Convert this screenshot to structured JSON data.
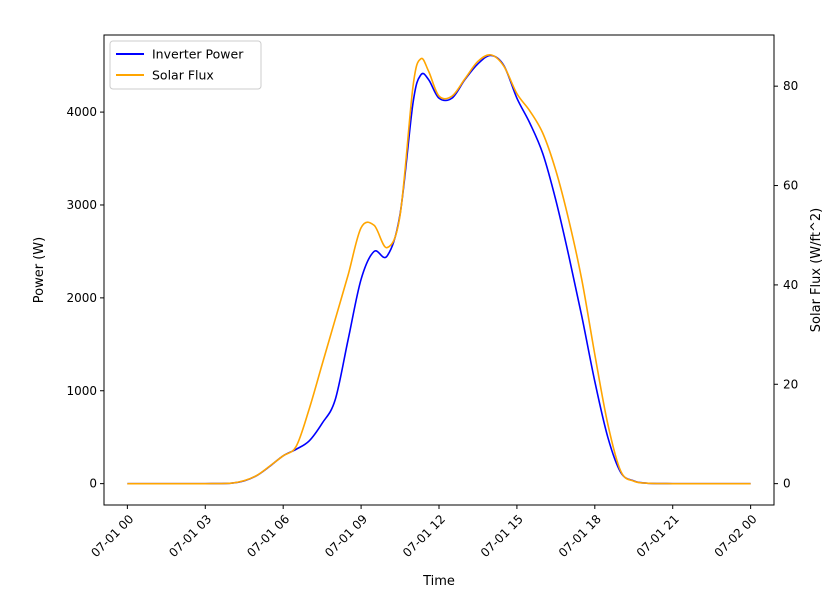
{
  "chart_data": {
    "type": "line",
    "title": "",
    "xlabel": "Time",
    "ylabel_left": "Power (W)",
    "ylabel_right": "Solar Flux (W/ft^2)",
    "x_unit": "hours since 07-01 00:00",
    "xlim": [
      -0.9,
      24.9
    ],
    "ylim_left": [
      -230,
      4830
    ],
    "ylim_right": [
      -4.3,
      90.3
    ],
    "x_ticks": [
      {
        "value": 0,
        "label": "07-01 00"
      },
      {
        "value": 3,
        "label": "07-01 03"
      },
      {
        "value": 6,
        "label": "07-01 06"
      },
      {
        "value": 9,
        "label": "07-01 09"
      },
      {
        "value": 12,
        "label": "07-01 12"
      },
      {
        "value": 15,
        "label": "07-01 15"
      },
      {
        "value": 18,
        "label": "07-01 18"
      },
      {
        "value": 21,
        "label": "07-01 21"
      },
      {
        "value": 24,
        "label": "07-02 00"
      }
    ],
    "y_ticks_left": [
      {
        "value": 0,
        "label": "0"
      },
      {
        "value": 1000,
        "label": "1000"
      },
      {
        "value": 2000,
        "label": "2000"
      },
      {
        "value": 3000,
        "label": "3000"
      },
      {
        "value": 4000,
        "label": "4000"
      }
    ],
    "y_ticks_right": [
      {
        "value": 0,
        "label": "0"
      },
      {
        "value": 20,
        "label": "20"
      },
      {
        "value": 40,
        "label": "40"
      },
      {
        "value": 60,
        "label": "60"
      },
      {
        "value": 80,
        "label": "80"
      }
    ],
    "legend_position": "top-left",
    "grid": false,
    "series": [
      {
        "name": "Inverter Power",
        "color": "#0000ff",
        "axis": "left",
        "x": [
          0,
          1,
          2,
          3,
          4,
          4.5,
          5,
          5.5,
          6,
          6.5,
          7,
          7.5,
          8,
          8.5,
          9,
          9.5,
          10,
          10.5,
          11,
          11.3,
          11.6,
          12,
          12.5,
          13,
          13.5,
          14,
          14.5,
          15,
          15.5,
          16,
          16.5,
          17,
          17.5,
          18,
          18.5,
          19,
          19.5,
          20,
          21,
          22,
          23,
          24
        ],
        "y": [
          0,
          0,
          0,
          0,
          5,
          30,
          90,
          190,
          300,
          370,
          460,
          650,
          900,
          1550,
          2200,
          2500,
          2450,
          2900,
          4100,
          4400,
          4350,
          4150,
          4150,
          4350,
          4520,
          4610,
          4500,
          4150,
          3880,
          3550,
          3050,
          2450,
          1800,
          1100,
          500,
          120,
          30,
          5,
          0,
          0,
          0,
          0
        ]
      },
      {
        "name": "Solar Flux",
        "color": "#ffa500",
        "axis": "right",
        "x": [
          0,
          1,
          2,
          3,
          4,
          4.5,
          5,
          5.5,
          6,
          6.5,
          7,
          7.5,
          8,
          8.5,
          9,
          9.5,
          10,
          10.5,
          11,
          11.3,
          11.6,
          12,
          12.5,
          13,
          13.5,
          14,
          14.5,
          15,
          15.5,
          16,
          16.5,
          17,
          17.5,
          18,
          18.5,
          19,
          19.5,
          20,
          21,
          22,
          23,
          24
        ],
        "y": [
          0,
          0,
          0,
          0,
          0.1,
          0.6,
          1.7,
          3.6,
          5.6,
          7.5,
          15,
          24,
          33,
          42,
          51.5,
          52,
          47.5,
          54,
          80,
          85.5,
          83,
          78,
          78,
          81.5,
          85,
          86.3,
          84,
          78.5,
          75,
          70.5,
          63,
          53,
          41,
          26,
          12,
          2.5,
          0.5,
          0.1,
          0,
          0,
          0,
          0
        ]
      }
    ]
  }
}
